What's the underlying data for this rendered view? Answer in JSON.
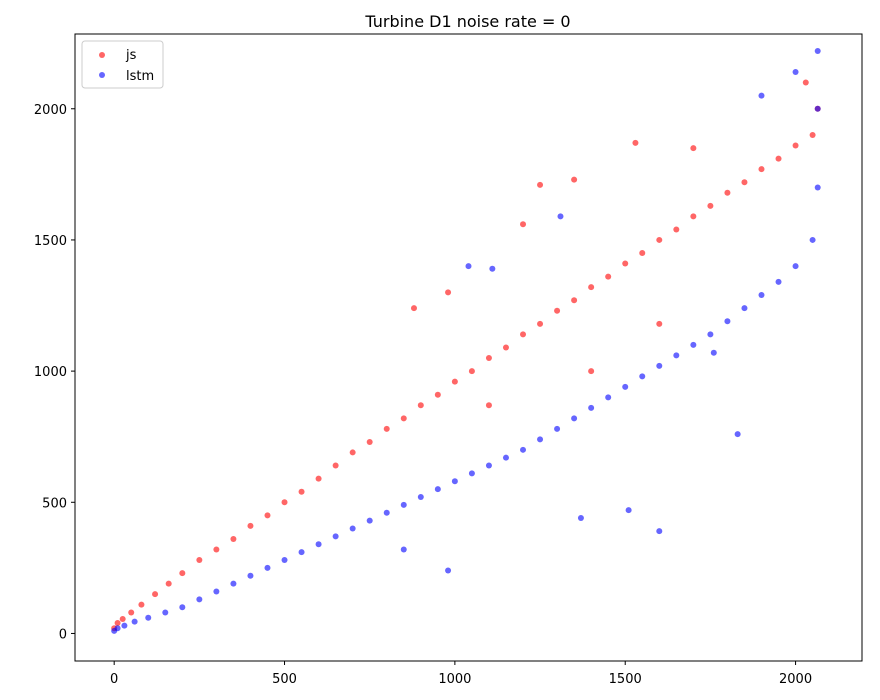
{
  "chart_data": {
    "type": "scatter",
    "title": "Turbine D1 noise rate = 0",
    "xlabel": "",
    "ylabel": "",
    "xlim": [
      -115,
      2195
    ],
    "ylim": [
      -105,
      2285
    ],
    "x_ticks": [
      0,
      500,
      1000,
      1500,
      2000
    ],
    "y_ticks": [
      0,
      500,
      1000,
      1500,
      2000
    ],
    "x_tick_labels": [
      "0",
      "500",
      "1000",
      "1500",
      "2000"
    ],
    "y_tick_labels": [
      "0",
      "500",
      "1000",
      "1500",
      "2000"
    ],
    "grid": false,
    "legend_position": "top-left",
    "series": [
      {
        "name": "js",
        "color": "#ff0000",
        "opacity": 0.6,
        "points": [
          [
            0,
            20
          ],
          [
            10,
            40
          ],
          [
            25,
            55
          ],
          [
            50,
            80
          ],
          [
            80,
            110
          ],
          [
            120,
            150
          ],
          [
            160,
            190
          ],
          [
            200,
            230
          ],
          [
            250,
            280
          ],
          [
            300,
            320
          ],
          [
            350,
            360
          ],
          [
            400,
            410
          ],
          [
            450,
            450
          ],
          [
            500,
            500
          ],
          [
            550,
            540
          ],
          [
            600,
            590
          ],
          [
            650,
            640
          ],
          [
            700,
            690
          ],
          [
            750,
            730
          ],
          [
            800,
            780
          ],
          [
            850,
            820
          ],
          [
            900,
            870
          ],
          [
            950,
            910
          ],
          [
            1000,
            960
          ],
          [
            1050,
            1000
          ],
          [
            1100,
            1050
          ],
          [
            1150,
            1090
          ],
          [
            1200,
            1140
          ],
          [
            1250,
            1180
          ],
          [
            1300,
            1230
          ],
          [
            1350,
            1270
          ],
          [
            1400,
            1320
          ],
          [
            1450,
            1360
          ],
          [
            1500,
            1410
          ],
          [
            1550,
            1450
          ],
          [
            1600,
            1500
          ],
          [
            1650,
            1540
          ],
          [
            1700,
            1590
          ],
          [
            1750,
            1630
          ],
          [
            1800,
            1680
          ],
          [
            1850,
            1720
          ],
          [
            1900,
            1770
          ],
          [
            1950,
            1810
          ],
          [
            2000,
            1860
          ],
          [
            2050,
            1900
          ],
          [
            2065,
            2000
          ],
          [
            1250,
            1710
          ],
          [
            1350,
            1730
          ],
          [
            1530,
            1870
          ],
          [
            980,
            1300
          ],
          [
            880,
            1240
          ],
          [
            1200,
            1560
          ],
          [
            1700,
            1850
          ],
          [
            2030,
            2100
          ],
          [
            1100,
            870
          ],
          [
            1400,
            1000
          ],
          [
            1600,
            1180
          ]
        ]
      },
      {
        "name": "lstm",
        "color": "#0000ff",
        "opacity": 0.6,
        "points": [
          [
            0,
            10
          ],
          [
            10,
            20
          ],
          [
            30,
            30
          ],
          [
            60,
            45
          ],
          [
            100,
            60
          ],
          [
            150,
            80
          ],
          [
            200,
            100
          ],
          [
            250,
            130
          ],
          [
            300,
            160
          ],
          [
            350,
            190
          ],
          [
            400,
            220
          ],
          [
            450,
            250
          ],
          [
            500,
            280
          ],
          [
            550,
            310
          ],
          [
            600,
            340
          ],
          [
            650,
            370
          ],
          [
            700,
            400
          ],
          [
            750,
            430
          ],
          [
            800,
            460
          ],
          [
            850,
            490
          ],
          [
            900,
            520
          ],
          [
            950,
            550
          ],
          [
            1000,
            580
          ],
          [
            1050,
            610
          ],
          [
            1100,
            640
          ],
          [
            1150,
            670
          ],
          [
            1200,
            700
          ],
          [
            1250,
            740
          ],
          [
            1300,
            780
          ],
          [
            1350,
            820
          ],
          [
            1400,
            860
          ],
          [
            1450,
            900
          ],
          [
            1500,
            940
          ],
          [
            1550,
            980
          ],
          [
            1600,
            1020
          ],
          [
            1650,
            1060
          ],
          [
            1700,
            1100
          ],
          [
            1750,
            1140
          ],
          [
            1800,
            1190
          ],
          [
            1850,
            1240
          ],
          [
            1900,
            1290
          ],
          [
            1950,
            1340
          ],
          [
            2000,
            1400
          ],
          [
            2050,
            1500
          ],
          [
            2065,
            1700
          ],
          [
            2065,
            2000
          ],
          [
            2065,
            2220
          ],
          [
            1040,
            1400
          ],
          [
            1110,
            1390
          ],
          [
            1310,
            1590
          ],
          [
            1600,
            390
          ],
          [
            1830,
            760
          ],
          [
            1510,
            470
          ],
          [
            1370,
            440
          ],
          [
            980,
            240
          ],
          [
            850,
            320
          ],
          [
            2000,
            2140
          ],
          [
            1900,
            2050
          ],
          [
            1760,
            1070
          ]
        ]
      }
    ]
  }
}
